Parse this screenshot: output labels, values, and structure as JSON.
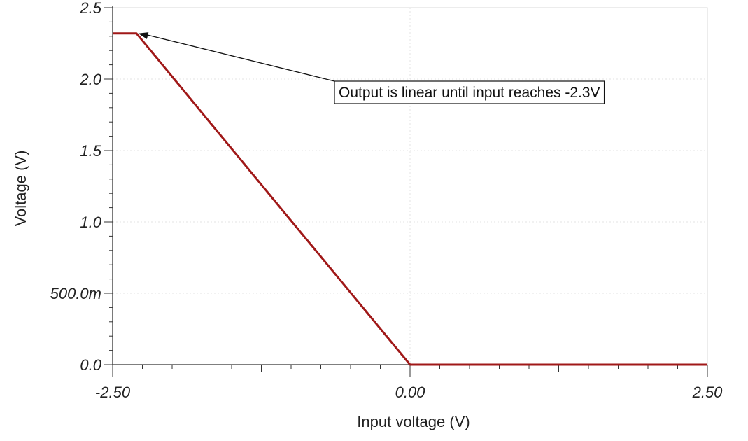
{
  "chart_data": {
    "type": "line",
    "xlabel": "Input voltage (V)",
    "ylabel": "Voltage (V)",
    "xlim": [
      -2.5,
      2.5
    ],
    "ylim": [
      0,
      2.5
    ],
    "x_ticks": [
      -2.5,
      0,
      2.5
    ],
    "x_tick_labels": [
      "-2.50",
      "0.00",
      "2.50"
    ],
    "y_ticks": [
      0,
      0.5,
      1.0,
      1.5,
      2.0,
      2.5
    ],
    "y_tick_labels": [
      "0.0",
      "500.0m",
      "1.0",
      "1.5",
      "2.0",
      "2.5"
    ],
    "grid": true,
    "legend": "none",
    "series": [
      {
        "color": "#a01818",
        "x": [
          -2.5,
          -2.3,
          0.0,
          2.5
        ],
        "y": [
          2.32,
          2.32,
          0.0,
          0.0
        ]
      }
    ],
    "annotations": [
      {
        "text": "Output is linear until input reaches -2.3V",
        "arrow_to": [
          -2.25,
          2.32
        ]
      }
    ]
  }
}
